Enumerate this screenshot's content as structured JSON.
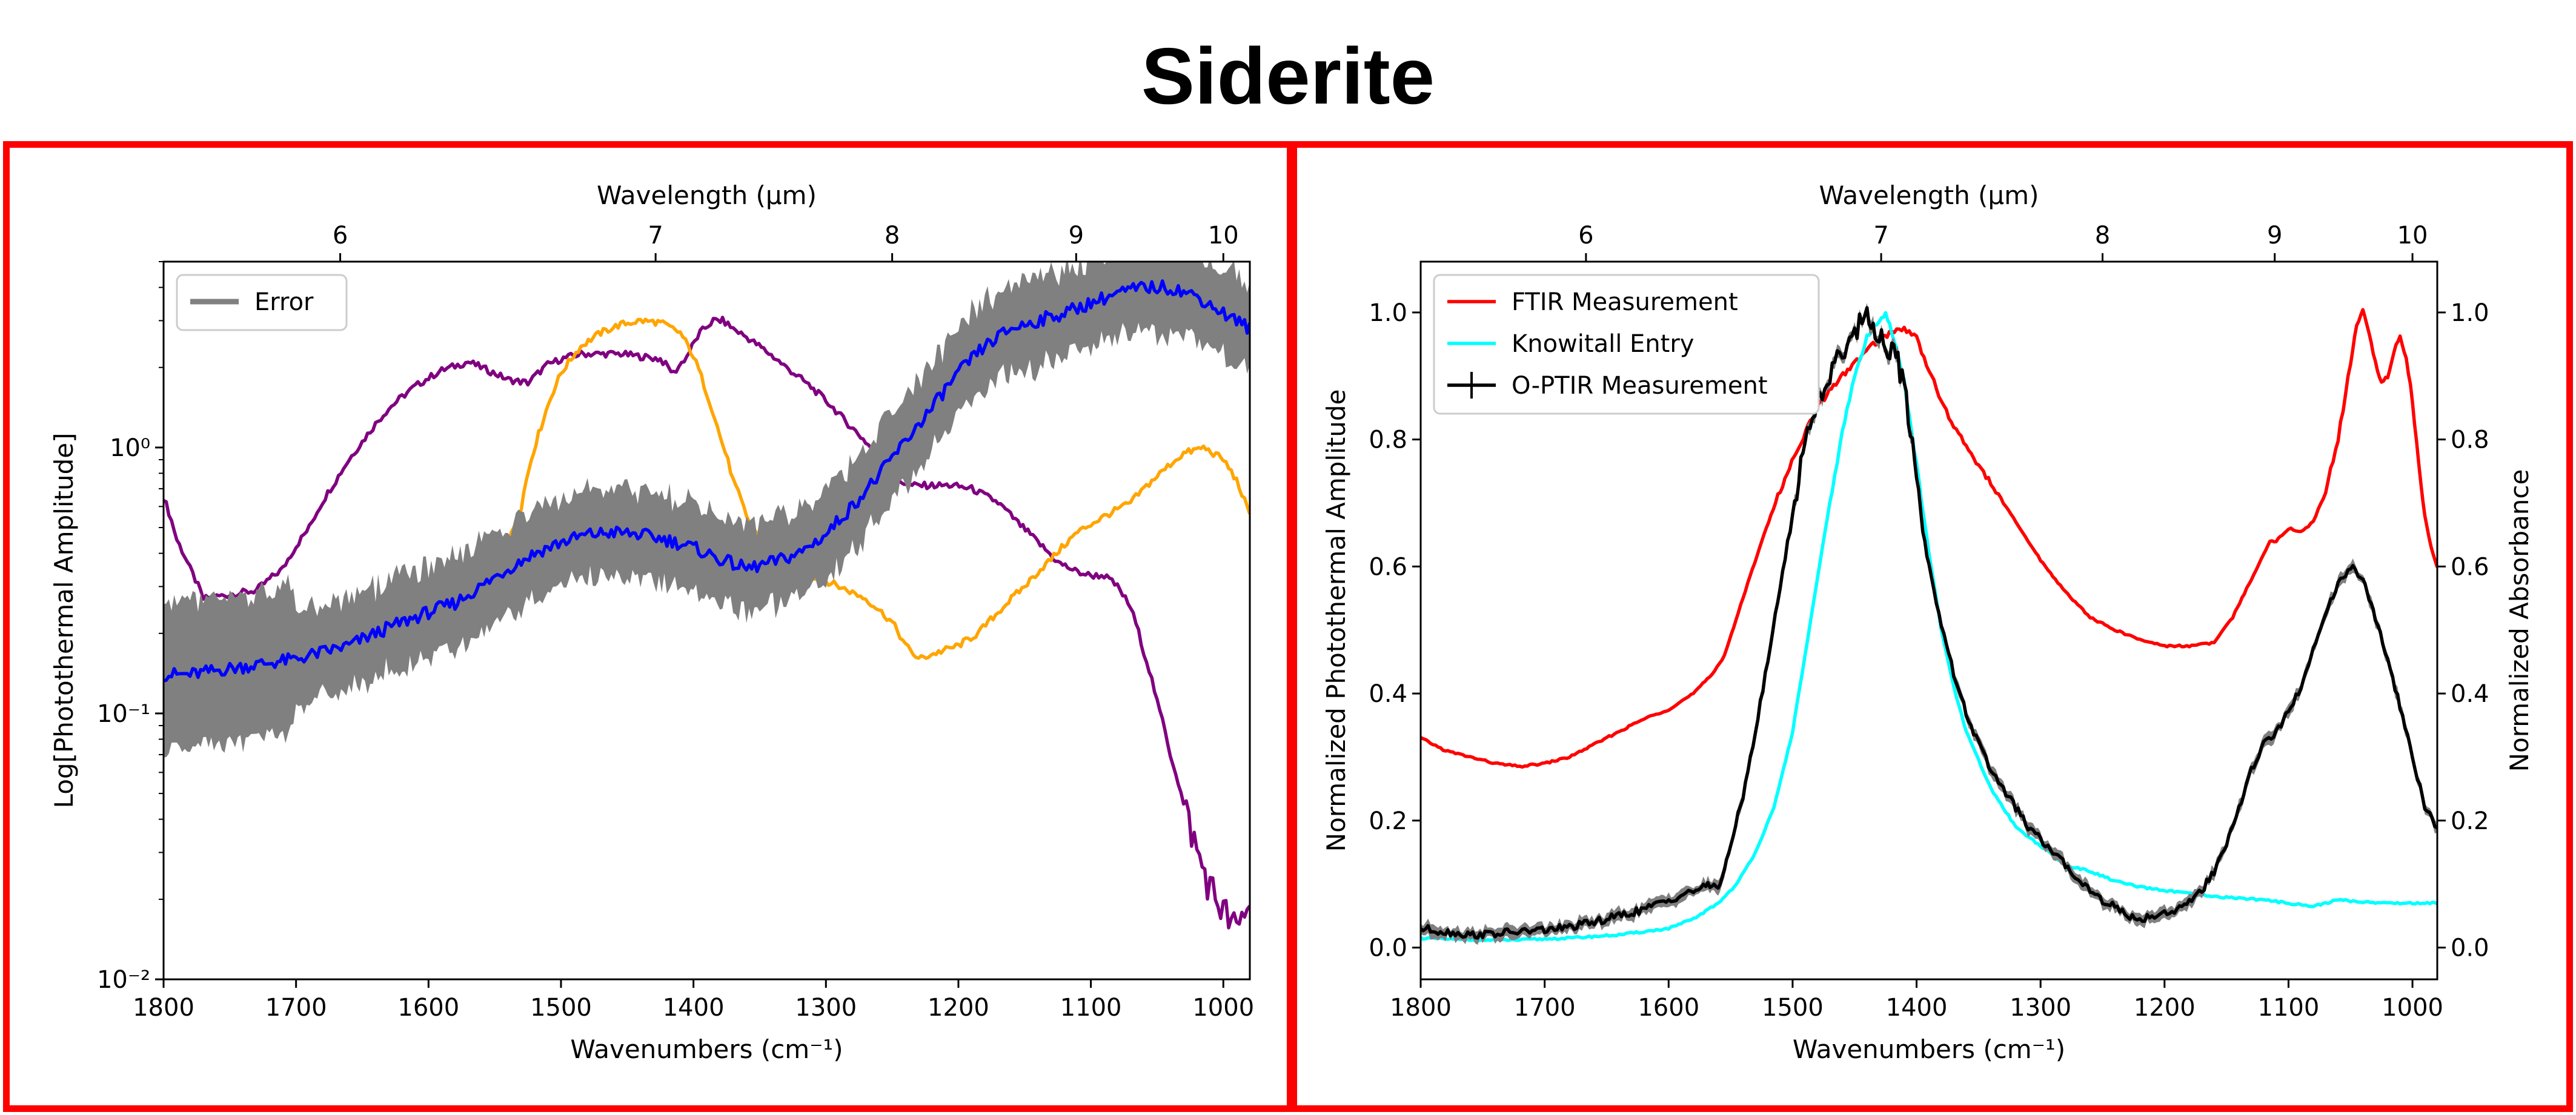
{
  "title": "Siderite",
  "colors": {
    "frame": "#ff0000",
    "error": "#808080",
    "blue": "#0000ff",
    "orange": "#ffa500",
    "purple": "#800080",
    "ftir": "#ff0000",
    "knowitall": "#00ffff",
    "optir": "#000000"
  },
  "chart_data": [
    {
      "type": "line",
      "title": "",
      "xlabel": "Wavenumbers (cm⁻¹)",
      "ylabel": "Log[Photothermal Amplitude]",
      "top_xlabel": "Wavelength (μm)",
      "xlim": [
        1800,
        980
      ],
      "ylim": [
        0.01,
        5
      ],
      "yscale": "log",
      "x_ticks": [
        1800,
        1700,
        1600,
        1500,
        1400,
        1300,
        1200,
        1100,
        1000
      ],
      "y_ticks": [
        {
          "value": 0.01,
          "label": "10⁻²"
        },
        {
          "value": 0.1,
          "label": "10⁻¹"
        },
        {
          "value": 1,
          "label": "10⁰"
        }
      ],
      "top_ticks": [
        6,
        7,
        8,
        9,
        10
      ],
      "legend": {
        "position": "top-left",
        "entries": [
          "Error"
        ]
      },
      "series": [
        {
          "name": "purple",
          "color": "#800080",
          "x": [
            1800,
            1790,
            1780,
            1770,
            1750,
            1730,
            1710,
            1690,
            1670,
            1650,
            1630,
            1610,
            1590,
            1570,
            1555,
            1540,
            1525,
            1510,
            1500,
            1485,
            1470,
            1455,
            1440,
            1425,
            1415,
            1405,
            1395,
            1385,
            1378,
            1370,
            1360,
            1345,
            1330,
            1315,
            1300,
            1285,
            1270,
            1255,
            1245,
            1235,
            1220,
            1205,
            1190,
            1170,
            1155,
            1140,
            1125,
            1110,
            1100,
            1090,
            1080,
            1070,
            1060,
            1050,
            1040,
            1030,
            1020,
            1010,
            1000,
            990,
            980
          ],
          "y": [
            0.65,
            0.45,
            0.35,
            0.27,
            0.28,
            0.29,
            0.35,
            0.5,
            0.75,
            1.05,
            1.4,
            1.7,
            1.95,
            2.1,
            1.95,
            1.8,
            1.75,
            2.05,
            2.15,
            2.25,
            2.25,
            2.25,
            2.2,
            2.15,
            1.9,
            2.2,
            2.7,
            3.0,
            3.0,
            2.8,
            2.6,
            2.3,
            2.0,
            1.75,
            1.5,
            1.25,
            1.05,
            0.85,
            0.75,
            0.72,
            0.72,
            0.72,
            0.7,
            0.62,
            0.52,
            0.44,
            0.37,
            0.34,
            0.33,
            0.33,
            0.3,
            0.25,
            0.17,
            0.11,
            0.07,
            0.045,
            0.03,
            0.022,
            0.018,
            0.015,
            0.02
          ]
        },
        {
          "name": "orange",
          "color": "#ffa500",
          "x": [
            1800,
            1780,
            1760,
            1740,
            1720,
            1700,
            1680,
            1660,
            1640,
            1620,
            1600,
            1580,
            1560,
            1545,
            1530,
            1515,
            1500,
            1485,
            1470,
            1455,
            1440,
            1425,
            1410,
            1400,
            1390,
            1380,
            1370,
            1360,
            1350,
            1340,
            1330,
            1310,
            1290,
            1270,
            1250,
            1240,
            1230,
            1215,
            1200,
            1185,
            1170,
            1150,
            1130,
            1110,
            1090,
            1070,
            1050,
            1030,
            1015,
            1000,
            990,
            980
          ],
          "y": [
            0.08,
            0.09,
            0.1,
            0.11,
            0.115,
            0.12,
            0.14,
            0.16,
            0.19,
            0.21,
            0.23,
            0.26,
            0.29,
            0.34,
            0.6,
            1.2,
            1.9,
            2.4,
            2.7,
            2.9,
            3.0,
            2.95,
            2.7,
            2.2,
            1.6,
            1.1,
            0.75,
            0.55,
            0.45,
            0.4,
            0.37,
            0.33,
            0.3,
            0.27,
            0.22,
            0.18,
            0.16,
            0.17,
            0.18,
            0.2,
            0.24,
            0.3,
            0.38,
            0.48,
            0.55,
            0.62,
            0.78,
            0.95,
            1.0,
            0.9,
            0.75,
            0.55
          ]
        },
        {
          "name": "blue",
          "color": "#0000ff",
          "error_band": true,
          "x": [
            1800,
            1780,
            1760,
            1740,
            1720,
            1700,
            1680,
            1660,
            1640,
            1620,
            1600,
            1580,
            1560,
            1540,
            1520,
            1500,
            1480,
            1460,
            1440,
            1420,
            1400,
            1380,
            1360,
            1340,
            1320,
            1300,
            1280,
            1260,
            1240,
            1220,
            1200,
            1180,
            1160,
            1140,
            1120,
            1100,
            1080,
            1060,
            1040,
            1020,
            1000,
            980
          ],
          "y": [
            0.14,
            0.14,
            0.145,
            0.15,
            0.155,
            0.16,
            0.17,
            0.18,
            0.2,
            0.22,
            0.24,
            0.26,
            0.3,
            0.35,
            0.4,
            0.44,
            0.47,
            0.48,
            0.47,
            0.45,
            0.42,
            0.38,
            0.35,
            0.37,
            0.4,
            0.47,
            0.6,
            0.78,
            1.05,
            1.4,
            1.9,
            2.4,
            2.8,
            3.0,
            3.2,
            3.5,
            3.8,
            4.0,
            4.0,
            3.7,
            3.2,
            2.8
          ]
        }
      ]
    },
    {
      "type": "line",
      "title": "",
      "xlabel": "Wavenumbers (cm⁻¹)",
      "ylabel": "Normalized Photothermal Amplitude",
      "y2label": "Normalized Absorbance",
      "top_xlabel": "Wavelength (μm)",
      "xlim": [
        1800,
        980
      ],
      "ylim": [
        -0.05,
        1.08
      ],
      "x_ticks": [
        1800,
        1700,
        1600,
        1500,
        1400,
        1300,
        1200,
        1100,
        1000
      ],
      "y_ticks": [
        0.0,
        0.2,
        0.4,
        0.6,
        0.8,
        1.0
      ],
      "y_tick_labels": [
        "0.0",
        "0.2",
        "0.4",
        "0.6",
        "0.8",
        "1.0"
      ],
      "top_ticks": [
        6,
        7,
        8,
        9,
        10
      ],
      "legend": {
        "position": "top-left",
        "entries": [
          "FTIR Measurement",
          "Knowitall Entry",
          "O-PTIR Measurement"
        ]
      },
      "series": [
        {
          "name": "FTIR Measurement",
          "color": "#ff0000",
          "x": [
            1800,
            1780,
            1760,
            1740,
            1720,
            1700,
            1680,
            1660,
            1640,
            1620,
            1600,
            1580,
            1565,
            1555,
            1540,
            1525,
            1510,
            1495,
            1480,
            1465,
            1450,
            1435,
            1420,
            1410,
            1400,
            1390,
            1380,
            1370,
            1360,
            1340,
            1320,
            1300,
            1280,
            1260,
            1240,
            1220,
            1200,
            1180,
            1160,
            1145,
            1130,
            1120,
            1115,
            1110,
            1105,
            1100,
            1090,
            1080,
            1070,
            1060,
            1050,
            1045,
            1040,
            1035,
            1030,
            1025,
            1020,
            1015,
            1010,
            1005,
            1000,
            995,
            990,
            985,
            980
          ],
          "y": [
            0.33,
            0.31,
            0.3,
            0.29,
            0.285,
            0.29,
            0.3,
            0.32,
            0.34,
            0.36,
            0.375,
            0.4,
            0.43,
            0.46,
            0.55,
            0.64,
            0.72,
            0.79,
            0.85,
            0.89,
            0.92,
            0.95,
            0.97,
            0.975,
            0.96,
            0.91,
            0.86,
            0.82,
            0.79,
            0.73,
            0.67,
            0.61,
            0.56,
            0.52,
            0.5,
            0.485,
            0.475,
            0.475,
            0.48,
            0.52,
            0.58,
            0.62,
            0.64,
            0.64,
            0.65,
            0.66,
            0.655,
            0.67,
            0.72,
            0.8,
            0.92,
            0.98,
            1.0,
            0.97,
            0.92,
            0.89,
            0.9,
            0.94,
            0.96,
            0.93,
            0.86,
            0.76,
            0.68,
            0.63,
            0.6
          ]
        },
        {
          "name": "Knowitall Entry",
          "color": "#00ffff",
          "x": [
            1800,
            1760,
            1720,
            1680,
            1640,
            1600,
            1580,
            1560,
            1545,
            1530,
            1515,
            1500,
            1490,
            1480,
            1470,
            1460,
            1450,
            1440,
            1430,
            1425,
            1420,
            1410,
            1400,
            1390,
            1380,
            1370,
            1360,
            1340,
            1320,
            1300,
            1280,
            1260,
            1240,
            1220,
            1200,
            1180,
            1160,
            1140,
            1120,
            1100,
            1080,
            1060,
            1040,
            1020,
            1000,
            980
          ],
          "y": [
            0.015,
            0.012,
            0.012,
            0.015,
            0.02,
            0.03,
            0.045,
            0.07,
            0.1,
            0.15,
            0.22,
            0.34,
            0.46,
            0.58,
            0.7,
            0.81,
            0.9,
            0.96,
            0.99,
            1.0,
            0.97,
            0.89,
            0.76,
            0.62,
            0.5,
            0.41,
            0.34,
            0.25,
            0.19,
            0.16,
            0.13,
            0.12,
            0.105,
            0.095,
            0.09,
            0.085,
            0.08,
            0.078,
            0.075,
            0.07,
            0.065,
            0.075,
            0.072,
            0.07,
            0.07,
            0.07
          ]
        },
        {
          "name": "O-PTIR Measurement",
          "color": "#000000",
          "error_band": true,
          "x": [
            1800,
            1780,
            1760,
            1740,
            1720,
            1700,
            1680,
            1660,
            1640,
            1620,
            1600,
            1580,
            1570,
            1565,
            1560,
            1555,
            1550,
            1540,
            1530,
            1520,
            1510,
            1500,
            1495,
            1490,
            1480,
            1470,
            1460,
            1450,
            1440,
            1435,
            1430,
            1425,
            1420,
            1415,
            1410,
            1405,
            1400,
            1395,
            1390,
            1380,
            1370,
            1360,
            1350,
            1340,
            1330,
            1320,
            1310,
            1300,
            1290,
            1280,
            1270,
            1260,
            1250,
            1240,
            1230,
            1220,
            1210,
            1200,
            1190,
            1180,
            1170,
            1160,
            1150,
            1140,
            1130,
            1120,
            1110,
            1100,
            1090,
            1080,
            1070,
            1060,
            1050,
            1040,
            1035,
            1030,
            1020,
            1010,
            1000,
            990,
            980
          ],
          "y": [
            0.03,
            0.025,
            0.02,
            0.022,
            0.025,
            0.028,
            0.032,
            0.04,
            0.05,
            0.06,
            0.075,
            0.09,
            0.095,
            0.1,
            0.095,
            0.12,
            0.16,
            0.24,
            0.34,
            0.45,
            0.57,
            0.68,
            0.74,
            0.8,
            0.86,
            0.9,
            0.94,
            0.97,
            1.0,
            0.98,
            0.96,
            0.95,
            0.94,
            0.92,
            0.88,
            0.82,
            0.74,
            0.66,
            0.6,
            0.51,
            0.43,
            0.37,
            0.32,
            0.28,
            0.25,
            0.22,
            0.19,
            0.17,
            0.15,
            0.13,
            0.11,
            0.09,
            0.075,
            0.065,
            0.05,
            0.045,
            0.05,
            0.055,
            0.06,
            0.07,
            0.09,
            0.12,
            0.16,
            0.22,
            0.28,
            0.32,
            0.34,
            0.37,
            0.41,
            0.47,
            0.53,
            0.57,
            0.6,
            0.58,
            0.55,
            0.52,
            0.45,
            0.38,
            0.3,
            0.22,
            0.19
          ]
        }
      ]
    }
  ]
}
